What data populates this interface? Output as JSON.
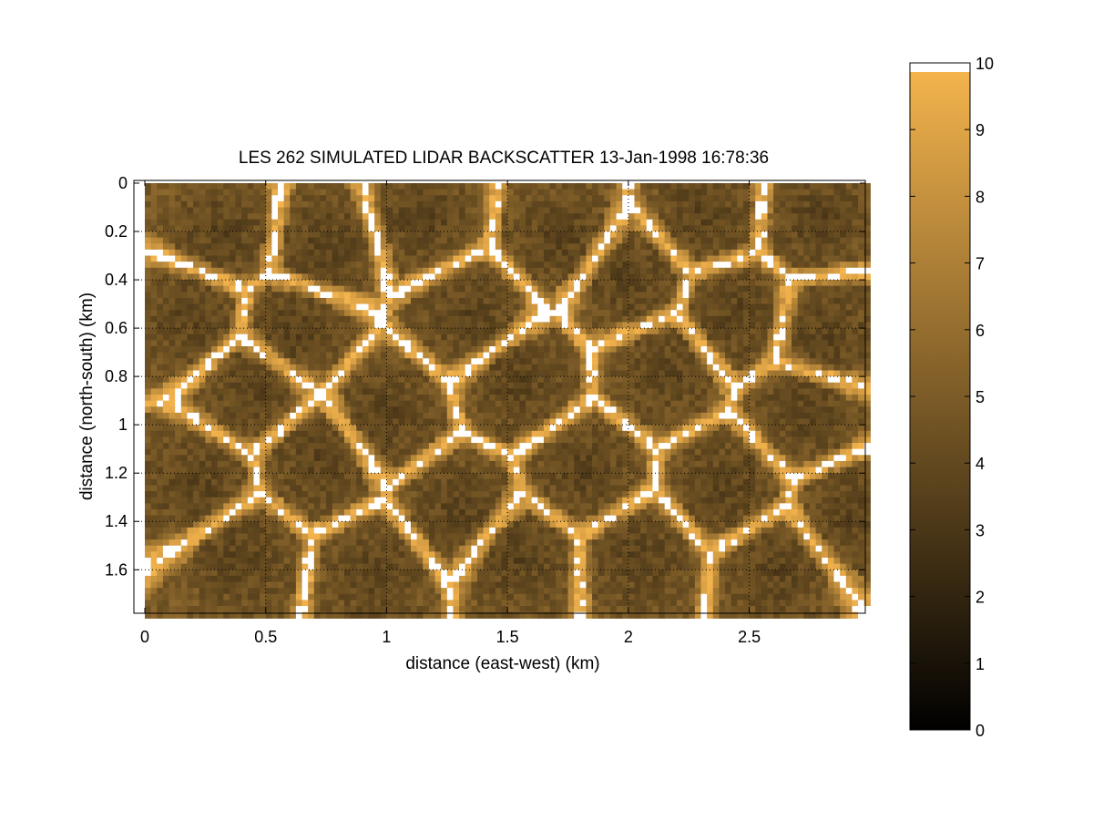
{
  "chart_data": {
    "type": "heatmap",
    "title": "LES 262 SIMULATED LIDAR BACKSCATTER 13-Jan-1998 16:78:36",
    "xlabel": "distance (east-west) (km)",
    "ylabel": "distance (north-south) (km)",
    "xlim": [
      0,
      2.98
    ],
    "ylim": [
      0,
      1.78
    ],
    "y_direction": "reversed",
    "xticks": [
      0,
      0.5,
      1,
      1.5,
      2,
      2.5
    ],
    "xtick_labels": [
      "0",
      "0.5",
      "1",
      "1.5",
      "2",
      "2.5"
    ],
    "yticks": [
      0,
      0.2,
      0.4,
      0.6,
      0.8,
      1,
      1.2,
      1.4,
      1.6
    ],
    "ytick_labels": [
      "0",
      "0.2",
      "0.4",
      "0.6",
      "0.8",
      "1",
      "1.2",
      "1.4",
      "1.6"
    ],
    "grid": "dotted",
    "grid_spacing_km": 0.5,
    "cell_size_km": 0.025,
    "colorbar": {
      "range": [
        0,
        10
      ],
      "ticks": [
        0,
        1,
        2,
        3,
        4,
        5,
        6,
        7,
        8,
        9,
        10
      ],
      "tick_labels": [
        "0",
        "1",
        "2",
        "3",
        "4",
        "5",
        "6",
        "7",
        "8",
        "9",
        "10"
      ],
      "colormap": "copper-like",
      "color_low": "#000000",
      "color_high": "#f7b64e",
      "saturated_color": "#ffffff",
      "position": "right"
    },
    "field_description": "convective cell pattern: dark cell interiors (values ~2.5-5) bounded by bright edges (values ~7-10+), saturated values shown white",
    "cells": [
      {
        "x": 0.32,
        "y": 0.2
      },
      {
        "x": 0.75,
        "y": 0.25
      },
      {
        "x": 1.15,
        "y": 0.15
      },
      {
        "x": 1.72,
        "y": 0.22
      },
      {
        "x": 2.32,
        "y": 0.12
      },
      {
        "x": 2.78,
        "y": 0.15
      },
      {
        "x": 0.18,
        "y": 0.55
      },
      {
        "x": 0.62,
        "y": 0.62
      },
      {
        "x": 1.35,
        "y": 0.55
      },
      {
        "x": 2.0,
        "y": 0.4
      },
      {
        "x": 2.45,
        "y": 0.55
      },
      {
        "x": 2.82,
        "y": 0.62
      },
      {
        "x": 0.45,
        "y": 0.85
      },
      {
        "x": 1.0,
        "y": 0.95
      },
      {
        "x": 1.55,
        "y": 0.82
      },
      {
        "x": 2.15,
        "y": 0.78
      },
      {
        "x": 2.72,
        "y": 0.95
      },
      {
        "x": 0.2,
        "y": 1.25
      },
      {
        "x": 0.72,
        "y": 1.15
      },
      {
        "x": 1.3,
        "y": 1.35
      },
      {
        "x": 1.82,
        "y": 1.2
      },
      {
        "x": 2.4,
        "y": 1.25
      },
      {
        "x": 0.4,
        "y": 1.55
      },
      {
        "x": 0.95,
        "y": 1.62
      },
      {
        "x": 1.55,
        "y": 1.55
      },
      {
        "x": 2.05,
        "y": 1.55
      },
      {
        "x": 2.62,
        "y": 1.6
      },
      {
        "x": 2.92,
        "y": 1.38
      }
    ]
  }
}
